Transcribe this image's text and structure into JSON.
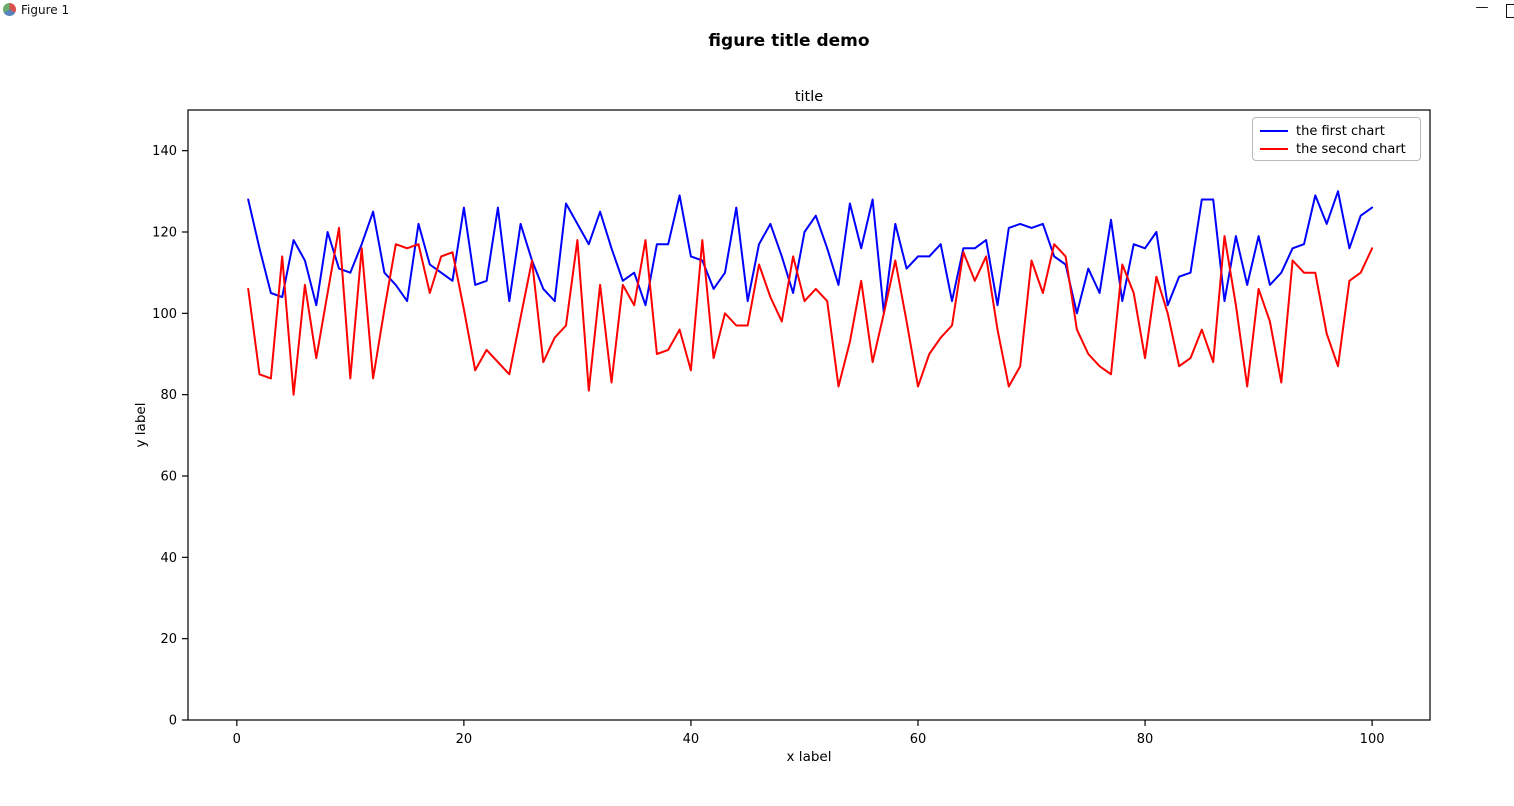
{
  "window": {
    "title": "Figure 1",
    "minimize_label": "—"
  },
  "figure": {
    "suptitle": "figure title demo",
    "axes_title": "title"
  },
  "legend": {
    "entries": [
      {
        "label": "the first chart",
        "color": "#0000ff"
      },
      {
        "label": "the second chart",
        "color": "#ff0000"
      }
    ]
  },
  "chart_data": {
    "type": "line",
    "title": "title",
    "suptitle": "figure title demo",
    "xlabel": "x label",
    "ylabel": "y label",
    "xlim": [
      -4.3,
      105.1
    ],
    "ylim": [
      0,
      150
    ],
    "x_ticks": [
      0,
      20,
      40,
      60,
      80,
      100
    ],
    "y_ticks": [
      0,
      20,
      40,
      60,
      80,
      100,
      120,
      140
    ],
    "x_start": 1,
    "grid": false,
    "legend_position": "upper right",
    "series": [
      {
        "name": "the first chart",
        "color": "#0000ff",
        "values": [
          128,
          116,
          105,
          104,
          118,
          113,
          102,
          120,
          111,
          110,
          117,
          125,
          110,
          107,
          103,
          122,
          112,
          110,
          108,
          126,
          107,
          108,
          126,
          103,
          122,
          113,
          106,
          103,
          127,
          122,
          117,
          125,
          116,
          108,
          110,
          102,
          117,
          117,
          129,
          114,
          113,
          106,
          110,
          126,
          103,
          117,
          122,
          114,
          105,
          120,
          124,
          116,
          107,
          127,
          116,
          128,
          100,
          122,
          111,
          114,
          114,
          117,
          103,
          116,
          116,
          118,
          102,
          121,
          122,
          121,
          122,
          114,
          112,
          100,
          111,
          105,
          123,
          103,
          117,
          116,
          120,
          102,
          109,
          110,
          128,
          128,
          103,
          119,
          107,
          119,
          107,
          110,
          116,
          117,
          129,
          122,
          130,
          116,
          124,
          126
        ]
      },
      {
        "name": "the second chart",
        "color": "#ff0000",
        "values": [
          106,
          85,
          84,
          114,
          80,
          107,
          89,
          105,
          121,
          84,
          116,
          84,
          101,
          117,
          116,
          117,
          105,
          114,
          115,
          101,
          86,
          91,
          88,
          85,
          99,
          113,
          88,
          94,
          97,
          118,
          81,
          107,
          83,
          107,
          102,
          118,
          90,
          91,
          96,
          86,
          118,
          89,
          100,
          97,
          97,
          112,
          104,
          98,
          114,
          103,
          106,
          103,
          82,
          93,
          108,
          88,
          100,
          113,
          98,
          82,
          90,
          94,
          97,
          115,
          108,
          114,
          96,
          82,
          87,
          113,
          105,
          117,
          114,
          96,
          90,
          87,
          85,
          112,
          105,
          89,
          109,
          100,
          87,
          89,
          96,
          88,
          119,
          102,
          82,
          106,
          98,
          83,
          113,
          110,
          110,
          95,
          87,
          108,
          110,
          116
        ]
      }
    ]
  }
}
